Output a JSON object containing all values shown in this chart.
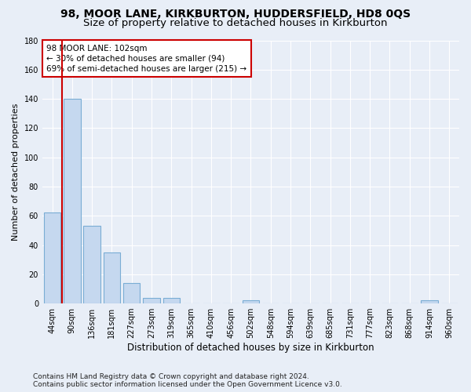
{
  "title": "98, MOOR LANE, KIRKBURTON, HUDDERSFIELD, HD8 0QS",
  "subtitle": "Size of property relative to detached houses in Kirkburton",
  "xlabel": "Distribution of detached houses by size in Kirkburton",
  "ylabel": "Number of detached properties",
  "categories": [
    "44sqm",
    "90sqm",
    "136sqm",
    "181sqm",
    "227sqm",
    "273sqm",
    "319sqm",
    "365sqm",
    "410sqm",
    "456sqm",
    "502sqm",
    "548sqm",
    "594sqm",
    "639sqm",
    "685sqm",
    "731sqm",
    "777sqm",
    "823sqm",
    "868sqm",
    "914sqm",
    "960sqm"
  ],
  "values": [
    62,
    140,
    53,
    35,
    14,
    4,
    4,
    0,
    0,
    0,
    2,
    0,
    0,
    0,
    0,
    0,
    0,
    0,
    0,
    2,
    0
  ],
  "bar_color": "#c5d8ef",
  "bar_edge_color": "#7aadd4",
  "property_line_x": 0.5,
  "annotation_line1": "98 MOOR LANE: 102sqm",
  "annotation_line2": "← 30% of detached houses are smaller (94)",
  "annotation_line3": "69% of semi-detached houses are larger (215) →",
  "annotation_box_color": "white",
  "annotation_box_edge_color": "#cc0000",
  "line_color": "#cc0000",
  "ylim": [
    0,
    180
  ],
  "yticks": [
    0,
    20,
    40,
    60,
    80,
    100,
    120,
    140,
    160,
    180
  ],
  "background_color": "#e8eef7",
  "plot_bg_color": "#e8eef7",
  "grid_color": "#ffffff",
  "footer": "Contains HM Land Registry data © Crown copyright and database right 2024.\nContains public sector information licensed under the Open Government Licence v3.0.",
  "title_fontsize": 10,
  "subtitle_fontsize": 9.5,
  "xlabel_fontsize": 8.5,
  "ylabel_fontsize": 8,
  "tick_fontsize": 7,
  "footer_fontsize": 6.5,
  "annotation_fontsize": 7.5
}
